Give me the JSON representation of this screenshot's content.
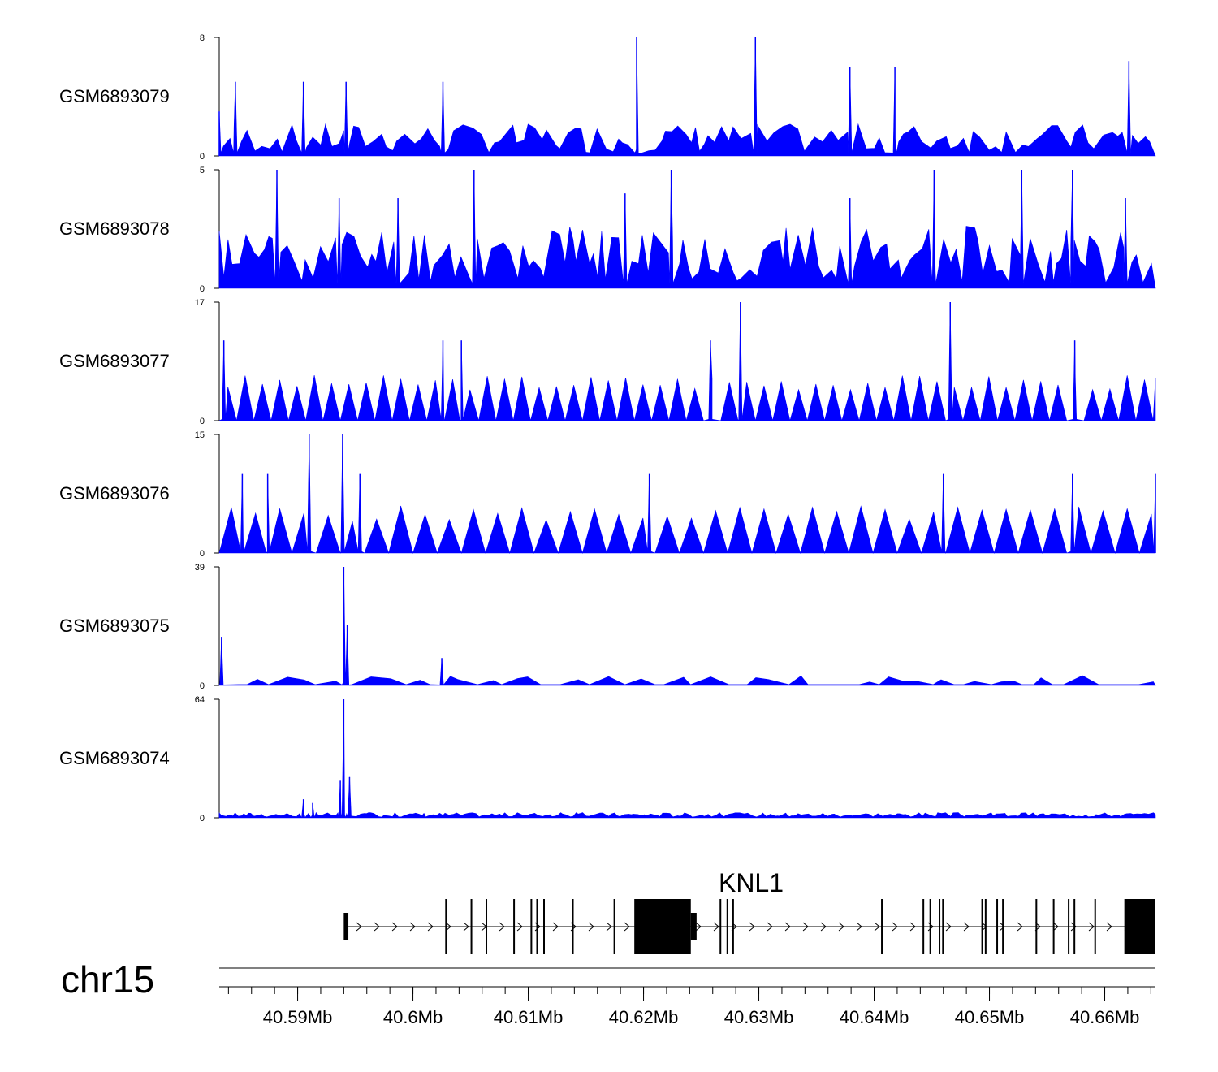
{
  "chart_data": {
    "type": "area",
    "title": "",
    "chromosome": "chr15",
    "xlim": [
      40.5832,
      40.6644
    ],
    "x_unit": "Mb",
    "x_ticks": [
      {
        "value": 40.59,
        "label": "40.59Mb"
      },
      {
        "value": 40.6,
        "label": "40.6Mb"
      },
      {
        "value": 40.61,
        "label": "40.61Mb"
      },
      {
        "value": 40.62,
        "label": "40.62Mb"
      },
      {
        "value": 40.63,
        "label": "40.63Mb"
      },
      {
        "value": 40.64,
        "label": "40.64Mb"
      },
      {
        "value": 40.65,
        "label": "40.65Mb"
      },
      {
        "value": 40.66,
        "label": "40.66Mb"
      }
    ],
    "fill_color": "#0000ff",
    "tracks": [
      {
        "name": "GSM6893079",
        "ylim": [
          0,
          8
        ],
        "ymax_label": "8",
        "ymin_label": "0",
        "style": "spiky",
        "base_level": 0.9,
        "spacing_mb": 0.0006,
        "seed": 7,
        "peaks": [
          [
            40.5832,
            3.0
          ],
          [
            40.5846,
            5.0
          ],
          [
            40.5905,
            5.0
          ],
          [
            40.5942,
            5.0
          ],
          [
            40.6026,
            5.0
          ],
          [
            40.6194,
            8.0
          ],
          [
            40.6297,
            8.0
          ],
          [
            40.6379,
            6.0
          ],
          [
            40.6418,
            6.0
          ],
          [
            40.6621,
            6.4
          ]
        ]
      },
      {
        "name": "GSM6893078",
        "ylim": [
          0,
          5
        ],
        "ymax_label": "5",
        "ymin_label": "0",
        "style": "spiky",
        "base_level": 1.1,
        "spacing_mb": 0.0005,
        "seed": 11,
        "peaks": [
          [
            40.5882,
            5.0
          ],
          [
            40.5936,
            3.8
          ],
          [
            40.5987,
            3.8
          ],
          [
            40.6053,
            5.0
          ],
          [
            40.6184,
            4.0
          ],
          [
            40.6224,
            5.0
          ],
          [
            40.6379,
            3.8
          ],
          [
            40.6452,
            5.0
          ],
          [
            40.6528,
            5.0
          ],
          [
            40.6572,
            5.0
          ],
          [
            40.6618,
            3.8
          ]
        ]
      },
      {
        "name": "GSM6893077",
        "ylim": [
          0,
          17
        ],
        "ymax_label": "17",
        "ymin_label": "0",
        "style": "triangles",
        "base_level": 5.5,
        "spacing_mb": 0.0015,
        "seed": 3,
        "peaks": [
          [
            40.5836,
            11.5
          ],
          [
            40.6026,
            11.5
          ],
          [
            40.6042,
            11.5
          ],
          [
            40.6258,
            11.5
          ],
          [
            40.6284,
            17.0
          ],
          [
            40.6466,
            17.0
          ],
          [
            40.6574,
            11.5
          ]
        ]
      },
      {
        "name": "GSM6893076",
        "ylim": [
          0,
          15
        ],
        "ymax_label": "15",
        "ymin_label": "0",
        "style": "triangles",
        "base_level": 5.0,
        "spacing_mb": 0.0021,
        "seed": 5,
        "peaks": [
          [
            40.5852,
            10.0
          ],
          [
            40.5874,
            10.0
          ],
          [
            40.591,
            15.0
          ],
          [
            40.5939,
            15.0
          ],
          [
            40.5954,
            10.0
          ],
          [
            40.6205,
            10.0
          ],
          [
            40.646,
            10.0
          ],
          [
            40.6572,
            10.0
          ],
          [
            40.6644,
            10.0
          ]
        ]
      },
      {
        "name": "GSM6893075",
        "ylim": [
          0,
          39
        ],
        "ymax_label": "39",
        "ymin_label": "0",
        "style": "sparse",
        "base_level": 2.2,
        "spacing_mb": 0.0012,
        "seed": 13,
        "peaks": [
          [
            40.5834,
            16.0
          ],
          [
            40.594,
            39.0
          ],
          [
            40.5943,
            20.0
          ],
          [
            40.6025,
            9.0
          ]
        ]
      },
      {
        "name": "GSM6893074",
        "ylim": [
          0,
          64
        ],
        "ymax_label": "64",
        "ymin_label": "0",
        "style": "dense",
        "base_level": 1.5,
        "spacing_mb": 0.0003,
        "seed": 17,
        "peaks": [
          [
            40.5905,
            10.0
          ],
          [
            40.5913,
            8.0
          ],
          [
            40.594,
            64.0
          ],
          [
            40.5937,
            20.0
          ],
          [
            40.5945,
            22.0
          ]
        ]
      }
    ],
    "gene": {
      "name": "KNL1",
      "strand": "+",
      "start": 40.5944,
      "end": 40.6644,
      "exons": [
        {
          "start": 40.594,
          "end": 40.5944,
          "kind": "utr"
        },
        {
          "start": 40.6028,
          "end": 40.6029,
          "kind": "thin"
        },
        {
          "start": 40.605,
          "end": 40.6051,
          "kind": "thin"
        },
        {
          "start": 40.6063,
          "end": 40.6064,
          "kind": "thin"
        },
        {
          "start": 40.6087,
          "end": 40.6088,
          "kind": "thin"
        },
        {
          "start": 40.6102,
          "end": 40.6103,
          "kind": "thin"
        },
        {
          "start": 40.6107,
          "end": 40.6108,
          "kind": "thin"
        },
        {
          "start": 40.6113,
          "end": 40.6114,
          "kind": "thin"
        },
        {
          "start": 40.6138,
          "end": 40.6139,
          "kind": "thin"
        },
        {
          "start": 40.6174,
          "end": 40.6175,
          "kind": "thin"
        },
        {
          "start": 40.6192,
          "end": 40.6241,
          "kind": "cds"
        },
        {
          "start": 40.6241,
          "end": 40.6246,
          "kind": "utr"
        },
        {
          "start": 40.6266,
          "end": 40.6267,
          "kind": "thin"
        },
        {
          "start": 40.6272,
          "end": 40.6273,
          "kind": "thin"
        },
        {
          "start": 40.6277,
          "end": 40.6278,
          "kind": "thin"
        },
        {
          "start": 40.6406,
          "end": 40.6407,
          "kind": "thin"
        },
        {
          "start": 40.6442,
          "end": 40.6443,
          "kind": "thin"
        },
        {
          "start": 40.6448,
          "end": 40.6449,
          "kind": "thin"
        },
        {
          "start": 40.6456,
          "end": 40.6457,
          "kind": "thin"
        },
        {
          "start": 40.6459,
          "end": 40.646,
          "kind": "thin"
        },
        {
          "start": 40.6493,
          "end": 40.6494,
          "kind": "thin"
        },
        {
          "start": 40.6496,
          "end": 40.6497,
          "kind": "thin"
        },
        {
          "start": 40.6506,
          "end": 40.6507,
          "kind": "thin"
        },
        {
          "start": 40.6511,
          "end": 40.6512,
          "kind": "thin"
        },
        {
          "start": 40.654,
          "end": 40.6541,
          "kind": "thin"
        },
        {
          "start": 40.6555,
          "end": 40.6556,
          "kind": "thin"
        },
        {
          "start": 40.6568,
          "end": 40.6569,
          "kind": "thin"
        },
        {
          "start": 40.6573,
          "end": 40.6574,
          "kind": "thin"
        },
        {
          "start": 40.6591,
          "end": 40.6592,
          "kind": "thin"
        },
        {
          "start": 40.6617,
          "end": 40.6644,
          "kind": "cds"
        }
      ]
    }
  }
}
